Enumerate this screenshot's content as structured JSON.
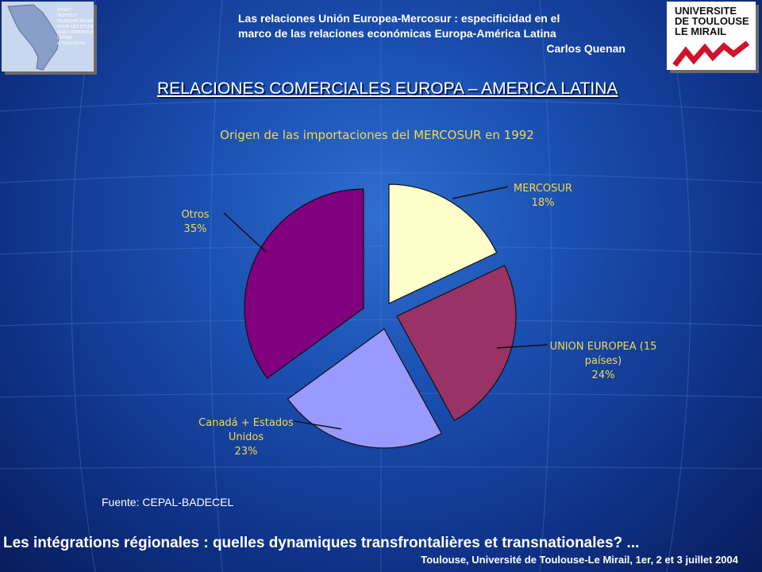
{
  "header": {
    "line1": "Las relaciones Unión Europea-Mercosur : especificidad en el",
    "line2": "marco de las relaciones económicas Europa-América Latina",
    "author": "Carlos Quenan"
  },
  "logos": {
    "left_text": [
      "IPEALT",
      "INSTITUT",
      "PLURIDISCIPLINAIRE",
      "POUR LES ETUDES",
      "SUR L'AMERIQUE",
      "LATINE",
      "A TOULOUSE"
    ],
    "right_text": [
      "UNIVERSITE",
      "DE TOULOUSE",
      "LE MIRAIL"
    ],
    "right_accent_color": "#d3112a"
  },
  "main_title": "RELACIONES COMERCIALES EUROPA – AMERICA LATINA",
  "chart_data": {
    "type": "pie",
    "title": "Origen de las importaciones del MERCOSUR en 1992",
    "slices": [
      {
        "label_lines": [
          "MERCOSUR",
          "18%"
        ],
        "value": 18,
        "color": "#ffffcc"
      },
      {
        "label_lines": [
          "UNION EUROPEA (15",
          "países)",
          "24%"
        ],
        "value": 24,
        "color": "#993366"
      },
      {
        "label_lines": [
          "Canadá + Estados",
          "Unidos",
          "23%"
        ],
        "value": 23,
        "color": "#9999ff"
      },
      {
        "label_lines": [
          "Otros",
          "35%"
        ],
        "value": 35,
        "color": "#800080"
      }
    ],
    "style": "exploded"
  },
  "source": "Fuente: CEPAL-BADECEL",
  "footer": {
    "main": "Les intégrations régionales : quelles dynamiques transfrontalières et transnationales? ...",
    "sub": "Toulouse, Université de Toulouse-Le Mirail, 1er, 2 et 3 juillet 2004"
  }
}
